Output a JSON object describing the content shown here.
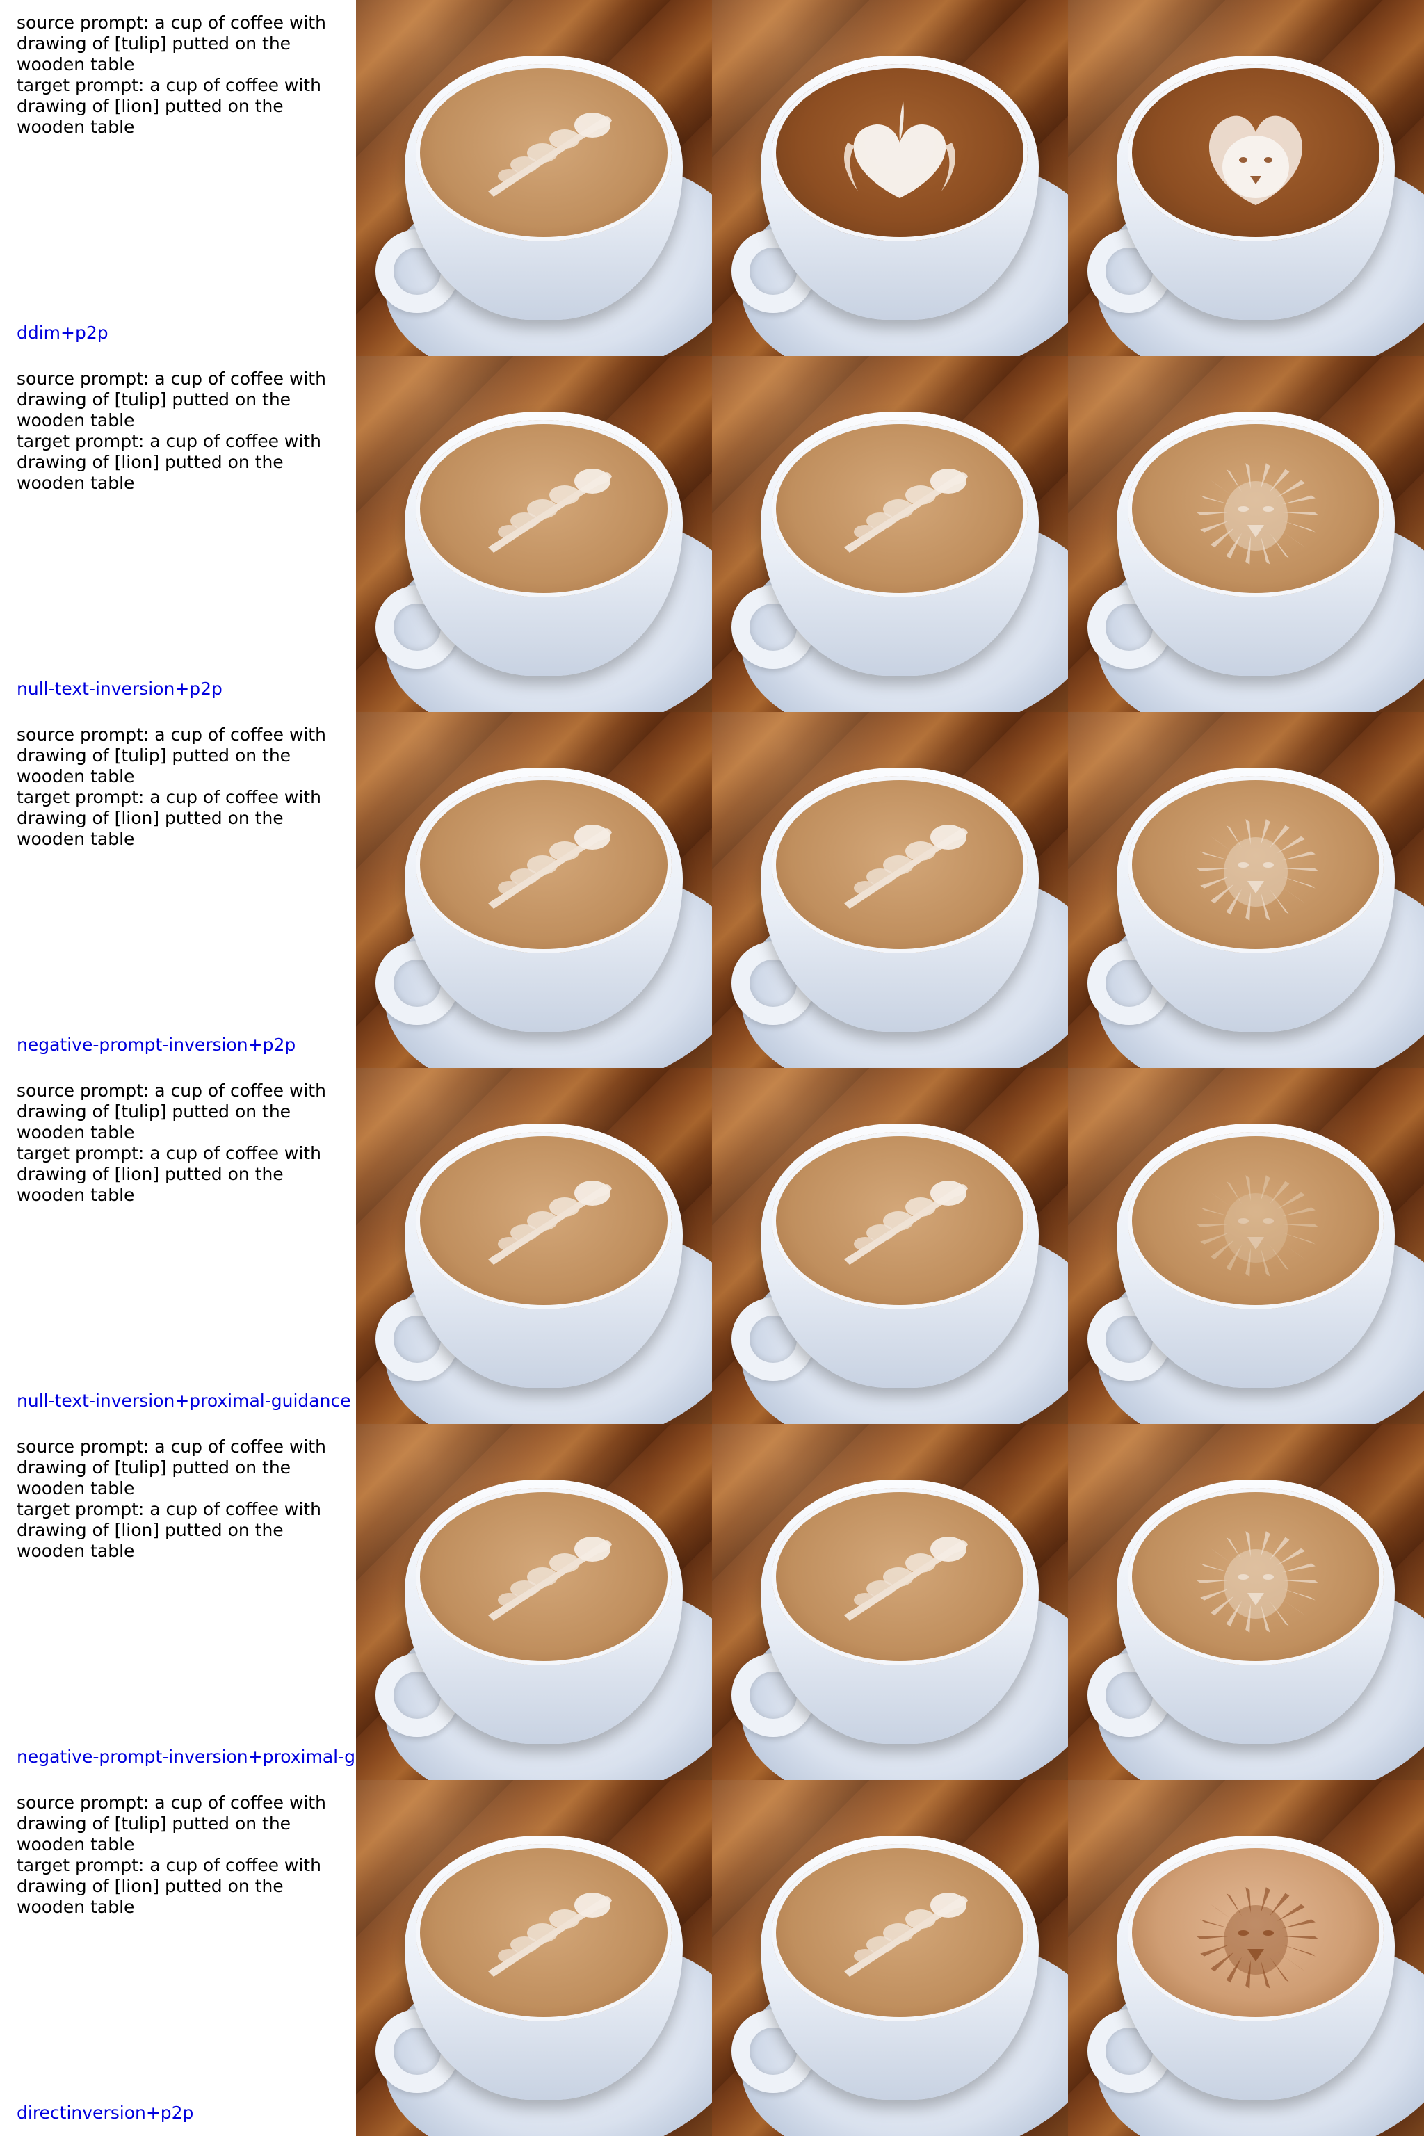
{
  "prompts": {
    "source": "source prompt: a cup of coffee with drawing of [tulip] putted on the wooden table",
    "target": "target prompt: a cup of coffee with drawing of [lion] putted on the wooden table"
  },
  "rows": [
    {
      "method": "ddim+p2p",
      "images": [
        {
          "art": "tulip"
        },
        {
          "art": "heart"
        },
        {
          "art": "lion-simple"
        }
      ]
    },
    {
      "method": "null-text-inversion+p2p",
      "images": [
        {
          "art": "tulip"
        },
        {
          "art": "tulip"
        },
        {
          "art": "lion"
        }
      ]
    },
    {
      "method": "negative-prompt-inversion+p2p",
      "images": [
        {
          "art": "tulip"
        },
        {
          "art": "tulip"
        },
        {
          "art": "lion"
        }
      ]
    },
    {
      "method": "null-text-inversion+proximal-guidance",
      "images": [
        {
          "art": "tulip"
        },
        {
          "art": "tulip"
        },
        {
          "art": "lion-faint"
        }
      ]
    },
    {
      "method": "negative-prompt-inversion+proximal-guidance",
      "images": [
        {
          "art": "tulip"
        },
        {
          "art": "tulip"
        },
        {
          "art": "lion"
        }
      ]
    },
    {
      "method": "directinversion+p2p",
      "images": [
        {
          "art": "tulip"
        },
        {
          "art": "tulip"
        },
        {
          "art": "lion-dark"
        }
      ]
    }
  ]
}
